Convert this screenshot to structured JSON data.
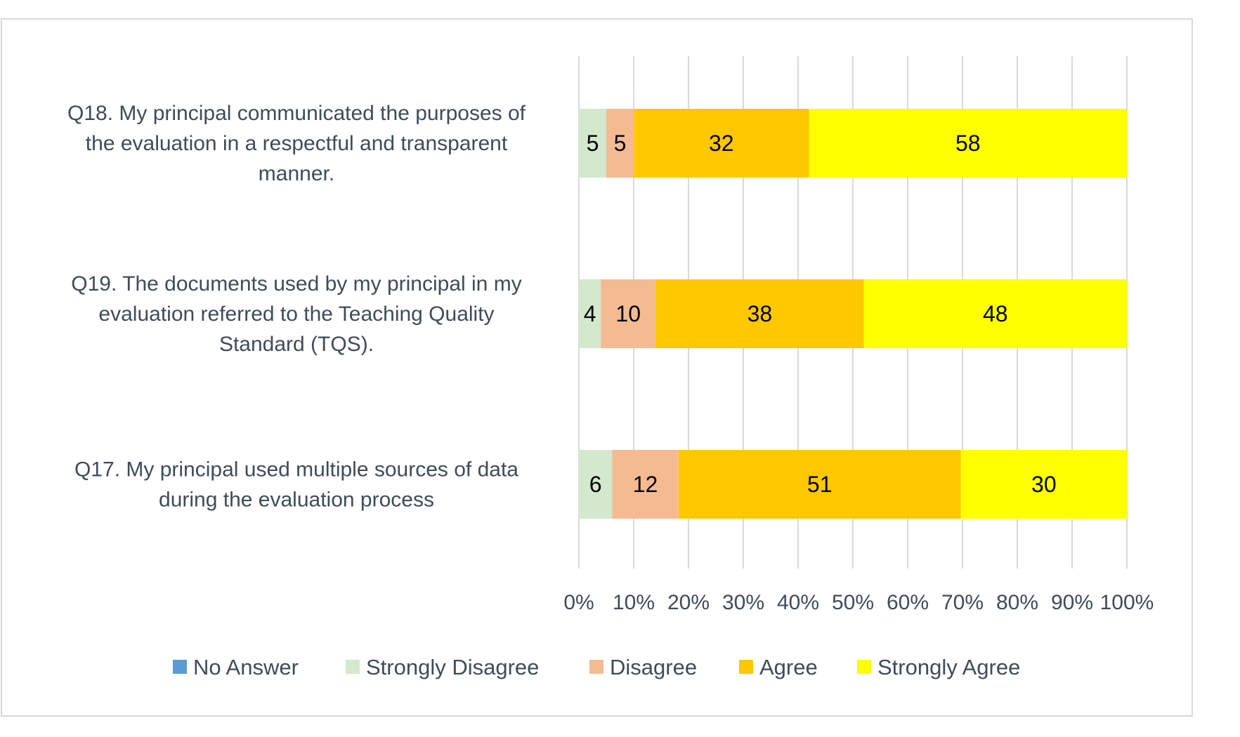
{
  "chart_data": {
    "type": "bar",
    "orientation": "horizontal",
    "stacking": "percent",
    "categories": [
      "Q18. My principal communicated the purposes of the evaluation in a respectful and transparent manner.",
      "Q19. The documents used by my principal in my evaluation referred to the Teaching Quality Standard (TQS).",
      "Q17. My principal used multiple sources of data during the evaluation process"
    ],
    "category_lines": [
      [
        "Q18. My principal communicated the purposes of",
        "the evaluation in a respectful and transparent",
        "manner."
      ],
      [
        "Q19. The documents used by my principal in my",
        "evaluation referred to the Teaching Quality",
        "Standard (TQS)."
      ],
      [
        "Q17. My principal used multiple sources of data",
        "during the evaluation process"
      ]
    ],
    "series": [
      {
        "name": "No Answer",
        "color": "#5b9bd5",
        "values": [
          0,
          0,
          0
        ]
      },
      {
        "name": "Strongly Disagree",
        "color": "#d3e8cd",
        "values": [
          5,
          4,
          6
        ]
      },
      {
        "name": "Disagree",
        "color": "#f4bb92",
        "values": [
          5,
          10,
          12
        ]
      },
      {
        "name": "Agree",
        "color": "#ffc800",
        "values": [
          32,
          38,
          51
        ]
      },
      {
        "name": "Strongly Agree",
        "color": "#ffff00",
        "values": [
          58,
          48,
          30
        ]
      }
    ],
    "x_ticks": [
      "0%",
      "10%",
      "20%",
      "30%",
      "40%",
      "50%",
      "60%",
      "70%",
      "80%",
      "90%",
      "100%"
    ],
    "xlim": [
      0,
      100
    ],
    "grid": true,
    "legend_position": "bottom",
    "title": "",
    "xlabel": "",
    "ylabel": ""
  }
}
